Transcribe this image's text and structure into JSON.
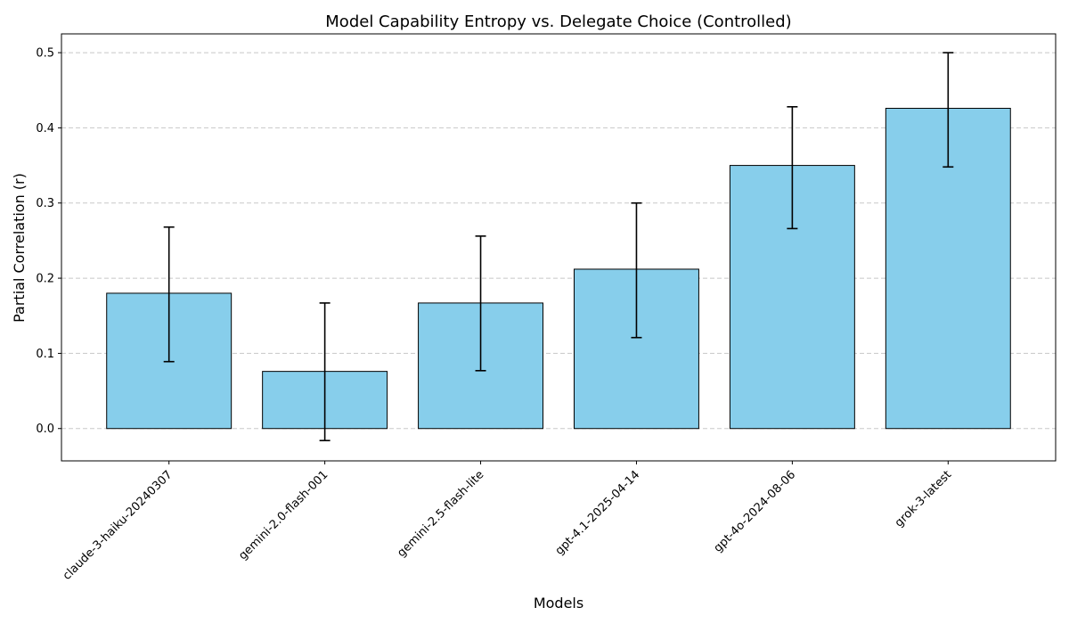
{
  "chart_data": {
    "type": "bar",
    "title": "Model Capability Entropy vs. Delegate Choice (Controlled)",
    "xlabel": "Models",
    "ylabel": "Partial Correlation (r)",
    "categories": [
      "claude-3-haiku-20240307",
      "gemini-2.0-flash-001",
      "gemini-2.5-flash-lite",
      "gpt-4.1-2025-04-14",
      "gpt-4o-2024-08-06",
      "grok-3-latest"
    ],
    "values": [
      0.18,
      0.076,
      0.167,
      0.212,
      0.35,
      0.426
    ],
    "error_low": [
      0.089,
      -0.016,
      0.077,
      0.121,
      0.266,
      0.348
    ],
    "error_high": [
      0.268,
      0.167,
      0.256,
      0.3,
      0.428,
      0.5
    ],
    "ylim": [
      -0.043,
      0.525
    ],
    "yticks": [
      0.0,
      0.1,
      0.2,
      0.3,
      0.4,
      0.5
    ],
    "ytick_labels": [
      "0.0",
      "0.1",
      "0.2",
      "0.3",
      "0.4",
      "0.5"
    ],
    "grid": "y-dashed",
    "bar_color": "#87CEEB",
    "bar_edge_color": "#000000",
    "grid_color": "#c8c8c8"
  }
}
